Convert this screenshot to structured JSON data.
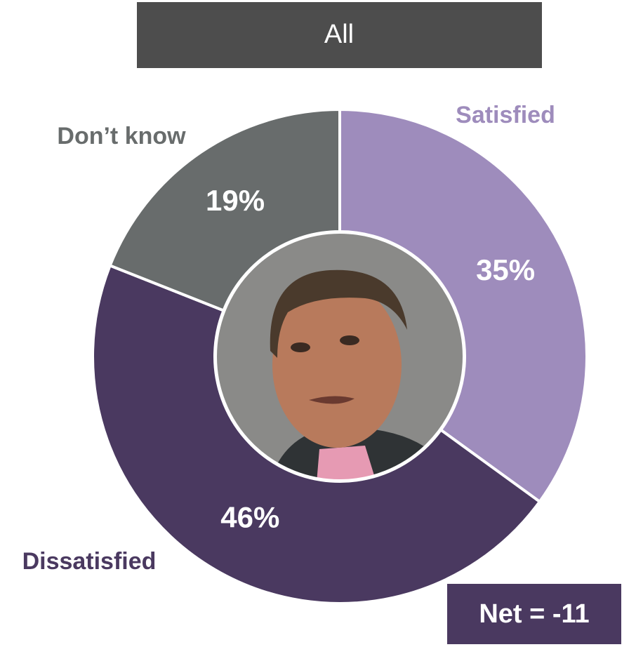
{
  "chart_data": {
    "type": "donut",
    "title": "All",
    "categories": [
      "Satisfied",
      "Dissatisfied",
      "Don’t know"
    ],
    "values": [
      35,
      46,
      19
    ],
    "value_labels": [
      "35%",
      "46%",
      "19%"
    ],
    "colors": [
      "#9e8cbc",
      "#4a3960",
      "#686c6c"
    ],
    "annotation": "Net = -11"
  }
}
